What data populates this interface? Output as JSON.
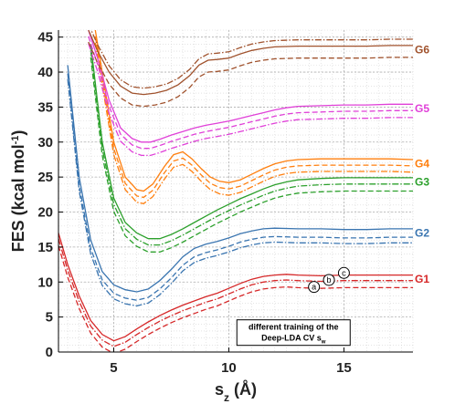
{
  "chart_data": {
    "type": "line",
    "title": "",
    "xlabel": "s",
    "xlabel_sub": "z",
    "xlabel_unit": " (Å)",
    "ylabel": "FES (kcal mol",
    "ylabel_sup": "-1",
    "ylabel_tail": ")",
    "xlim": [
      2.6,
      18
    ],
    "ylim": [
      0,
      46
    ],
    "xticks": [
      5,
      10,
      15
    ],
    "yticks": [
      0,
      5,
      10,
      15,
      20,
      25,
      30,
      35,
      40,
      45
    ],
    "grid": true,
    "minor_grid": true,
    "line_styles": [
      "solid",
      "dashed",
      "dashdot"
    ],
    "groups": [
      {
        "name": "G1",
        "color": "#d62728",
        "points": [
          [
            2.6,
            17
          ],
          [
            3.0,
            12.5
          ],
          [
            3.5,
            8
          ],
          [
            4.0,
            4.5
          ],
          [
            4.5,
            2.5
          ],
          [
            5.0,
            1.6
          ],
          [
            5.5,
            2.2
          ],
          [
            6.0,
            3.3
          ],
          [
            6.5,
            4.3
          ],
          [
            7.0,
            5.2
          ],
          [
            7.5,
            6.0
          ],
          [
            8.0,
            6.7
          ],
          [
            8.5,
            7.3
          ],
          [
            9.0,
            7.9
          ],
          [
            9.5,
            8.4
          ],
          [
            10.0,
            9.1
          ],
          [
            10.5,
            9.8
          ],
          [
            11.0,
            10.4
          ],
          [
            11.5,
            10.8
          ],
          [
            12.0,
            11.0
          ],
          [
            12.5,
            11.1
          ],
          [
            13.0,
            11.0
          ],
          [
            14.0,
            10.9
          ],
          [
            15.0,
            11.0
          ],
          [
            16.0,
            11.0
          ],
          [
            17.0,
            11.0
          ],
          [
            18.0,
            11.0
          ]
        ],
        "offsets": [
          0,
          -1.8,
          -0.8
        ]
      },
      {
        "name": "G2",
        "color": "#3a75b0",
        "points": [
          [
            3.0,
            41
          ],
          [
            3.5,
            25
          ],
          [
            4.0,
            16
          ],
          [
            4.5,
            11.5
          ],
          [
            5.0,
            9.6
          ],
          [
            5.5,
            8.9
          ],
          [
            6.0,
            8.6
          ],
          [
            6.5,
            9.0
          ],
          [
            7.0,
            10.2
          ],
          [
            7.5,
            11.8
          ],
          [
            8.0,
            13.6
          ],
          [
            8.5,
            14.8
          ],
          [
            9.0,
            15.4
          ],
          [
            9.5,
            15.8
          ],
          [
            10.0,
            16.3
          ],
          [
            10.5,
            16.9
          ],
          [
            11.0,
            17.3
          ],
          [
            11.5,
            17.6
          ],
          [
            12.0,
            17.7
          ],
          [
            13.0,
            17.6
          ],
          [
            14.0,
            17.6
          ],
          [
            15.0,
            17.5
          ],
          [
            16.0,
            17.5
          ],
          [
            17.0,
            17.6
          ],
          [
            18.0,
            17.6
          ]
        ],
        "offsets": [
          0,
          -1.2,
          -2.0
        ]
      },
      {
        "name": "G3",
        "color": "#2ca02c",
        "points": [
          [
            4.0,
            44
          ],
          [
            4.5,
            30
          ],
          [
            5.0,
            22
          ],
          [
            5.5,
            18.5
          ],
          [
            6.0,
            17
          ],
          [
            6.5,
            16.2
          ],
          [
            7.0,
            16.2
          ],
          [
            7.5,
            16.8
          ],
          [
            8.0,
            17.6
          ],
          [
            8.5,
            18.5
          ],
          [
            9.0,
            19.4
          ],
          [
            9.5,
            20.3
          ],
          [
            10.0,
            21.1
          ],
          [
            10.5,
            21.9
          ],
          [
            11.0,
            22.6
          ],
          [
            11.5,
            23.3
          ],
          [
            12.0,
            23.9
          ],
          [
            12.5,
            24.3
          ],
          [
            13.0,
            24.6
          ],
          [
            14.0,
            24.8
          ],
          [
            15.0,
            24.9
          ],
          [
            16.0,
            24.9
          ],
          [
            17.0,
            24.9
          ],
          [
            18.0,
            24.9
          ]
        ],
        "offsets": [
          0,
          -1.9,
          -0.9
        ]
      },
      {
        "name": "G4",
        "color": "#ff7f0e",
        "points": [
          [
            4.2,
            46
          ],
          [
            4.6,
            38
          ],
          [
            5.0,
            30
          ],
          [
            5.5,
            25
          ],
          [
            6.0,
            23.2
          ],
          [
            6.3,
            23.0
          ],
          [
            6.7,
            24.0
          ],
          [
            7.2,
            26.5
          ],
          [
            7.6,
            28.2
          ],
          [
            8.0,
            28.6
          ],
          [
            8.4,
            27.6
          ],
          [
            8.8,
            26.2
          ],
          [
            9.2,
            25.0
          ],
          [
            9.6,
            24.4
          ],
          [
            10.0,
            24.2
          ],
          [
            10.5,
            24.6
          ],
          [
            11.0,
            25.4
          ],
          [
            11.5,
            26.2
          ],
          [
            12.0,
            26.9
          ],
          [
            12.5,
            27.3
          ],
          [
            13.0,
            27.5
          ],
          [
            14.0,
            27.6
          ],
          [
            15.0,
            27.6
          ],
          [
            16.0,
            27.6
          ],
          [
            17.0,
            27.6
          ],
          [
            18.0,
            27.5
          ]
        ],
        "offsets": [
          0,
          -0.9,
          -1.8
        ]
      },
      {
        "name": "G5",
        "color": "#e040d8",
        "points": [
          [
            3.9,
            46
          ],
          [
            4.3,
            42
          ],
          [
            4.8,
            36
          ],
          [
            5.3,
            32
          ],
          [
            5.8,
            30.5
          ],
          [
            6.2,
            30.0
          ],
          [
            6.6,
            30.0
          ],
          [
            7.0,
            30.4
          ],
          [
            7.5,
            31.0
          ],
          [
            8.0,
            31.5
          ],
          [
            8.5,
            32.0
          ],
          [
            9.0,
            32.4
          ],
          [
            9.5,
            32.7
          ],
          [
            10.0,
            33.0
          ],
          [
            10.5,
            33.4
          ],
          [
            11.0,
            33.8
          ],
          [
            11.5,
            34.2
          ],
          [
            12.0,
            34.6
          ],
          [
            12.5,
            34.9
          ],
          [
            13.0,
            35.1
          ],
          [
            14.0,
            35.2
          ],
          [
            15.0,
            35.3
          ],
          [
            16.0,
            35.3
          ],
          [
            17.0,
            35.4
          ],
          [
            18.0,
            35.4
          ]
        ],
        "offsets": [
          0,
          -0.9,
          -1.9
        ]
      },
      {
        "name": "G6",
        "color": "#a0522d",
        "points": [
          [
            3.9,
            46
          ],
          [
            4.3,
            43
          ],
          [
            4.8,
            40
          ],
          [
            5.3,
            38
          ],
          [
            5.8,
            37.0
          ],
          [
            6.3,
            36.8
          ],
          [
            6.8,
            37.0
          ],
          [
            7.3,
            37.4
          ],
          [
            7.8,
            38.2
          ],
          [
            8.3,
            39.5
          ],
          [
            8.7,
            41.0
          ],
          [
            9.1,
            41.7
          ],
          [
            9.5,
            41.8
          ],
          [
            10.0,
            42.0
          ],
          [
            10.5,
            42.6
          ],
          [
            11.0,
            43.1
          ],
          [
            11.5,
            43.4
          ],
          [
            12.0,
            43.6
          ],
          [
            13.0,
            43.7
          ],
          [
            14.0,
            43.7
          ],
          [
            15.0,
            43.7
          ],
          [
            16.0,
            43.7
          ],
          [
            17.0,
            43.8
          ],
          [
            18.0,
            43.8
          ]
        ],
        "offsets": [
          0,
          -1.7,
          0.9
        ]
      }
    ],
    "markers": [
      {
        "label": "a",
        "x": 13.7,
        "y": 9.3
      },
      {
        "label": "b",
        "x": 14.35,
        "y": 10.3
      },
      {
        "label": "c",
        "x": 15.0,
        "y": 11.3
      }
    ],
    "annotation_lines": [
      "different training of the",
      "Deep-LDA CV s"
    ],
    "annotation_sub": "w"
  }
}
